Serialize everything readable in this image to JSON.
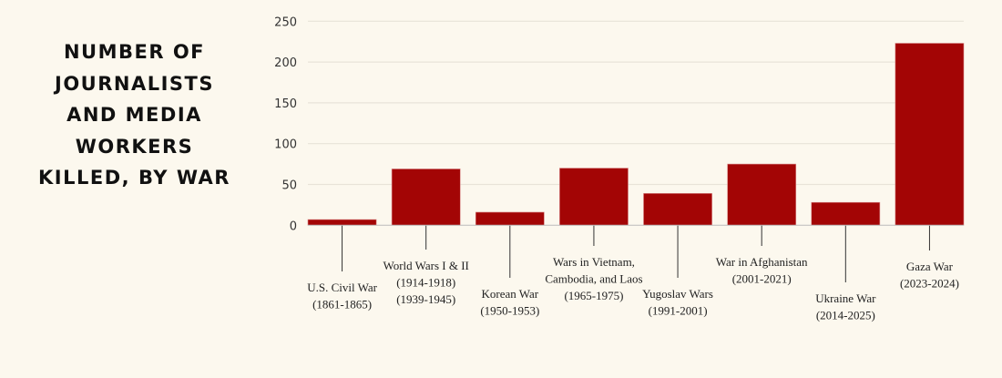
{
  "chart_data": {
    "type": "bar",
    "title_lines": [
      "NUMBER OF",
      "JOURNALISTS",
      "AND MEDIA",
      "WORKERS",
      "KILLED, BY WAR"
    ],
    "categories": [
      [
        "U.S. Civil War",
        "(1861-1865)"
      ],
      [
        "World Wars I & II",
        "(1914-1918)",
        "(1939-1945)"
      ],
      [
        "Korean War",
        "(1950-1953)"
      ],
      [
        "Wars in Vietnam,",
        "Cambodia, and Laos",
        "(1965-1975)"
      ],
      [
        "Yugoslav Wars",
        "(1991-2001)"
      ],
      [
        "War in Afghanistan",
        "(2001-2021)"
      ],
      [
        "Ukraine War",
        "(2014-2025)"
      ],
      [
        "Gaza War",
        "(2023-2024)"
      ]
    ],
    "values": [
      7,
      69,
      16,
      70,
      39,
      75,
      28,
      223
    ],
    "ylim": [
      0,
      250
    ],
    "yticks": [
      0,
      50,
      100,
      150,
      200,
      250
    ],
    "xlabel": "",
    "ylabel": "",
    "grid": true,
    "legend": "none",
    "colors": {
      "bar": "#a30505",
      "background": "#fcf8ee",
      "grid": "#e8e3d8"
    }
  }
}
